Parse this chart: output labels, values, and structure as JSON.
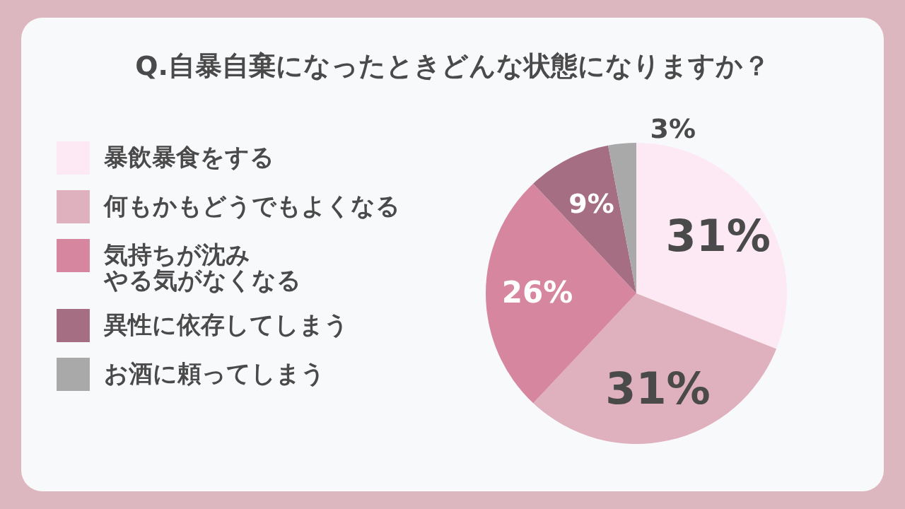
{
  "chart_data": {
    "type": "pie",
    "title": "Q.自暴自棄になったときどんな状態になりますか？",
    "categories": [
      "暴飲暴食をする",
      "何もかもどうでもよくなる",
      "気持ちが沈みやる気がなくなる",
      "異性に依存してしまう",
      "お酒に頼ってしまう"
    ],
    "values": [
      31,
      31,
      26,
      9,
      3
    ],
    "colors": [
      "#fde9f4",
      "#dfb0bd",
      "#d6879f",
      "#a66e82",
      "#a9a9a9"
    ],
    "value_labels": [
      "31%",
      "31%",
      "26%",
      "9%",
      "3%"
    ],
    "legend": "left"
  }
}
